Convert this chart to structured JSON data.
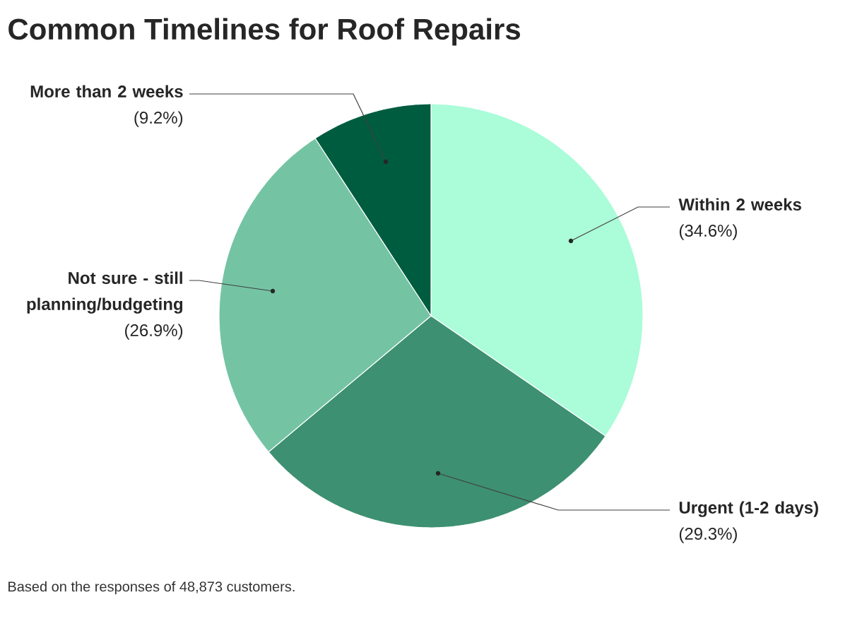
{
  "chart_data": {
    "type": "pie",
    "title": "Common Timelines for Roof Repairs",
    "categories": [
      "Within 2 weeks",
      "Urgent (1-2 days)",
      "Not sure - still planning/budgeting",
      "More than 2 weeks"
    ],
    "values": [
      34.6,
      29.3,
      26.9,
      9.2
    ],
    "value_labels": [
      "(34.6%)",
      "(29.3%)",
      "(26.9%)",
      "(9.2%)"
    ],
    "colors": [
      "#abfcd9",
      "#3d9071",
      "#74c4a4",
      "#005c3f"
    ],
    "annotations": [
      "Based on the responses of 48,873 customers."
    ]
  }
}
